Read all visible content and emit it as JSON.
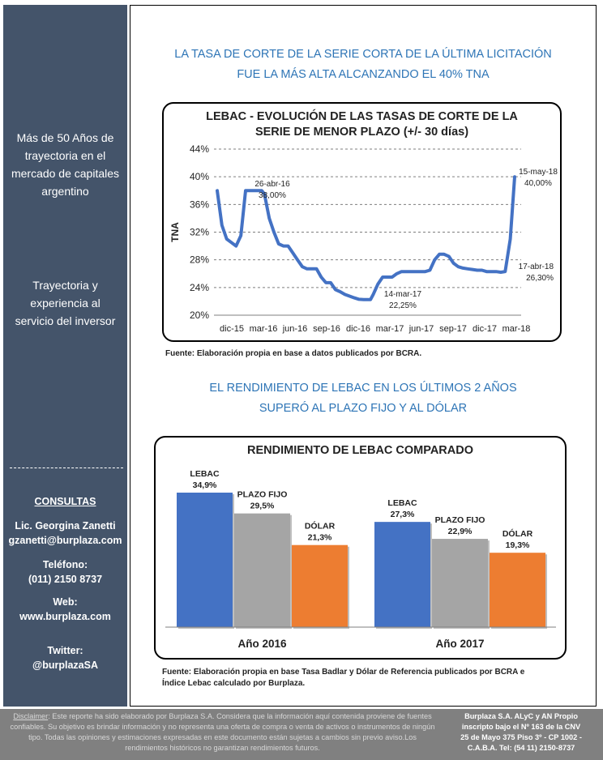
{
  "sidebar": {
    "tagline": "Más de 50 Años de trayectoria en el mercado de capitales argentino",
    "subtag": "Trayectoria y experiencia al servicio del inversor",
    "contact_header": "CONSULTAS",
    "contact_name": "Lic. Georgina Zanetti",
    "contact_email": "gzanetti@burplaza.com",
    "phone_label": "Teléfono:",
    "phone_value": "(011) 2150 8737",
    "web_label": "Web:",
    "web_value": "www.burplaza.com",
    "twitter_label": "Twitter:",
    "twitter_value": "@burplazaSA"
  },
  "section1": {
    "heading_line1": "LA TASA DE CORTE DE LA SERIE CORTA DE LA ÚLTIMA LICITACIÓN",
    "heading_line2": "FUE LA MÁS ALTA ALCANZANDO EL 40% TNA",
    "source": "Fuente: Elaboración propia en base a datos publicados por BCRA."
  },
  "section2": {
    "heading_line1": "EL RENDIMIENTO DE LEBAC EN LOS ÚLTIMOS 2 AÑOS",
    "heading_line2": "SUPERÓ AL PLAZO FIJO Y AL DÓLAR",
    "source_line1": "Fuente: Elaboración propia en base Tasa Badlar y Dólar de Referencia publicados por BCRA e",
    "source_line2": "Índice Lebac calculado por Burplaza."
  },
  "chart_data": [
    {
      "type": "line",
      "title_line1": "LEBAC - EVOLUCIÓN DE LAS TASAS DE CORTE DE LA",
      "title_line2": "SERIE DE MENOR PLAZO (+/- 30 días)",
      "ylabel": "TNA",
      "xlabel": "",
      "ylim": [
        20,
        44
      ],
      "y_ticks": [
        "20%",
        "24%",
        "28%",
        "32%",
        "36%",
        "40%",
        "44%"
      ],
      "x_ticks": [
        "dic-15",
        "mar-16",
        "jun-16",
        "sep-16",
        "dic-16",
        "mar-17",
        "jun-17",
        "sep-17",
        "dic-17",
        "mar-18"
      ],
      "grid": "horizontal dashed",
      "line_color": "#4472c4",
      "annotations": [
        {
          "date": "26-abr-16",
          "value": "38,00%"
        },
        {
          "date": "14-mar-17",
          "value": "22,25%"
        },
        {
          "date": "17-abr-18",
          "value": "26,30%"
        },
        {
          "date": "15-may-18",
          "value": "40,00%"
        }
      ],
      "series": [
        {
          "points": [
            [
              "2015-12-16",
              38.0
            ],
            [
              "2015-12-30",
              33.0
            ],
            [
              "2016-01-13",
              31.0
            ],
            [
              "2016-01-27",
              30.5
            ],
            [
              "2016-02-10",
              30.0
            ],
            [
              "2016-02-24",
              31.5
            ],
            [
              "2016-03-09",
              38.0
            ],
            [
              "2016-03-23",
              38.0
            ],
            [
              "2016-04-06",
              38.0
            ],
            [
              "2016-04-20",
              38.0
            ],
            [
              "2016-04-26",
              38.0
            ],
            [
              "2016-05-04",
              37.5
            ],
            [
              "2016-05-18",
              34.0
            ],
            [
              "2016-06-01",
              32.0
            ],
            [
              "2016-06-15",
              30.3
            ],
            [
              "2016-06-29",
              30.0
            ],
            [
              "2016-07-13",
              30.0
            ],
            [
              "2016-07-27",
              29.0
            ],
            [
              "2016-08-10",
              28.0
            ],
            [
              "2016-08-24",
              27.0
            ],
            [
              "2016-09-07",
              26.7
            ],
            [
              "2016-09-21",
              26.7
            ],
            [
              "2016-10-05",
              26.7
            ],
            [
              "2016-10-19",
              25.5
            ],
            [
              "2016-11-02",
              24.7
            ],
            [
              "2016-11-16",
              24.7
            ],
            [
              "2016-11-30",
              23.7
            ],
            [
              "2016-12-14",
              23.4
            ],
            [
              "2016-12-28",
              23.0
            ],
            [
              "2017-01-11",
              22.75
            ],
            [
              "2017-01-25",
              22.5
            ],
            [
              "2017-02-08",
              22.3
            ],
            [
              "2017-02-22",
              22.25
            ],
            [
              "2017-03-14",
              22.25
            ],
            [
              "2017-03-22",
              23.0
            ],
            [
              "2017-04-05",
              24.5
            ],
            [
              "2017-04-19",
              25.5
            ],
            [
              "2017-05-03",
              25.5
            ],
            [
              "2017-05-17",
              25.5
            ],
            [
              "2017-05-31",
              26.0
            ],
            [
              "2017-06-14",
              26.3
            ],
            [
              "2017-06-28",
              26.3
            ],
            [
              "2017-07-12",
              26.3
            ],
            [
              "2017-07-26",
              26.3
            ],
            [
              "2017-08-09",
              26.3
            ],
            [
              "2017-08-23",
              26.3
            ],
            [
              "2017-09-06",
              26.5
            ],
            [
              "2017-09-20",
              28.0
            ],
            [
              "2017-10-04",
              28.8
            ],
            [
              "2017-10-18",
              28.8
            ],
            [
              "2017-11-01",
              28.5
            ],
            [
              "2017-11-15",
              27.5
            ],
            [
              "2017-11-29",
              27.0
            ],
            [
              "2017-12-13",
              26.8
            ],
            [
              "2017-12-27",
              26.7
            ],
            [
              "2018-01-10",
              26.6
            ],
            [
              "2018-01-24",
              26.5
            ],
            [
              "2018-02-07",
              26.5
            ],
            [
              "2018-02-21",
              26.3
            ],
            [
              "2018-03-07",
              26.3
            ],
            [
              "2018-03-21",
              26.3
            ],
            [
              "2018-04-04",
              26.2
            ],
            [
              "2018-04-17",
              26.3
            ],
            [
              "2018-05-02",
              31.0
            ],
            [
              "2018-05-15",
              40.0
            ]
          ]
        }
      ]
    },
    {
      "type": "bar",
      "title": "RENDIMIENTO DE LEBAC COMPARADO",
      "categories": [
        "Año 2016",
        "Año 2017"
      ],
      "series": [
        {
          "name": "LEBAC",
          "values": [
            34.9,
            27.3
          ],
          "labels": [
            "34,9%",
            "27,3%"
          ],
          "color": "#4472c4"
        },
        {
          "name": "PLAZO FIJO",
          "values": [
            29.5,
            22.9
          ],
          "labels": [
            "29,5%",
            "22,9%"
          ],
          "color": "#a5a5a5"
        },
        {
          "name": "DÓLAR",
          "values": [
            21.3,
            19.3
          ],
          "labels": [
            "21,3%",
            "19,3%"
          ],
          "color": "#ed7d31"
        }
      ],
      "ylim": [
        0,
        40
      ]
    }
  ],
  "footer": {
    "disclaimer_label": "Disclaimer",
    "disclaimer_text": ": Este reporte ha sido elaborado por Burplaza S.A. Considera que la información aquí contenida proviene de fuentes confiables. Su objetivo es brindar información y no representa una oferta de compra o venta de activos o instrumentos de ningún tipo. Todas las opiniones y estimaciones expresadas en este documento están sujetas a cambios sin previo aviso.Los rendimientos históricos no garantizan rendimientos futuros.",
    "company_line1": "Burplaza S.A. ALyC y AN Propio",
    "company_line2": "inscripto bajo el Nº 163 de la CNV",
    "company_line3": "25 de Mayo 375 Piso 3º - CP 1002 -",
    "company_line4": "C.A.B.A. Tel: (54 11) 2150-8737"
  }
}
